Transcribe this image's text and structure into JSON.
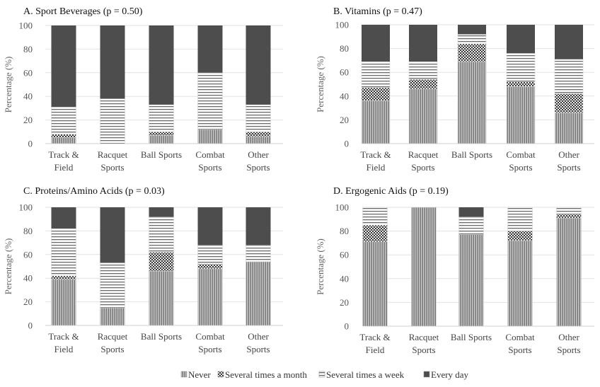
{
  "legend": {
    "items": [
      {
        "label": "Never",
        "key": "never"
      },
      {
        "label": "Several times a month",
        "key": "month"
      },
      {
        "label": "Several times a week",
        "key": "week"
      },
      {
        "label": "Every day",
        "key": "day"
      }
    ]
  },
  "chart_data": [
    {
      "type": "bar",
      "stacked": true,
      "title": "A. Sport Beverages (p = 0.50)",
      "xlabel": "",
      "ylabel": "Percentage (%)",
      "ylim": [
        0,
        100
      ],
      "yticks": [
        0,
        20,
        40,
        60,
        80,
        100
      ],
      "grid": true,
      "categories": [
        "Track & Field",
        "Racquet Sports",
        "Ball Sports",
        "Combat Sports",
        "Other Sports"
      ],
      "category_lines": [
        [
          "Track &",
          "Field"
        ],
        [
          "Racquet",
          "Sports"
        ],
        [
          "Ball Sports"
        ],
        [
          "Combat",
          "Sports"
        ],
        [
          "Other",
          "Sports"
        ]
      ],
      "series": [
        {
          "name": "Never",
          "values": [
            5,
            0,
            7,
            12,
            6
          ]
        },
        {
          "name": "Several times a month",
          "values": [
            3,
            0,
            3,
            0,
            4
          ]
        },
        {
          "name": "Several times a week",
          "values": [
            23,
            38,
            23,
            48,
            23
          ]
        },
        {
          "name": "Every day",
          "values": [
            69,
            62,
            67,
            40,
            67
          ]
        }
      ]
    },
    {
      "type": "bar",
      "stacked": true,
      "title": "B. Vitamins (p = 0.47)",
      "xlabel": "",
      "ylabel": "Percentage (%)",
      "ylim": [
        0,
        100
      ],
      "yticks": [
        0,
        20,
        40,
        60,
        80,
        100
      ],
      "grid": true,
      "categories": [
        "Track & Field",
        "Racquet Sports",
        "Ball Sports",
        "Combat Sports",
        "Other Sports"
      ],
      "category_lines": [
        [
          "Track &",
          "Field"
        ],
        [
          "Racquet",
          "Sports"
        ],
        [
          "Ball Sports"
        ],
        [
          "Combat",
          "Sports"
        ],
        [
          "Other",
          "Sports"
        ]
      ],
      "series": [
        {
          "name": "Never",
          "values": [
            36,
            46,
            69,
            48,
            26
          ]
        },
        {
          "name": "Several times a month",
          "values": [
            11,
            8,
            15,
            4,
            16
          ]
        },
        {
          "name": "Several times a week",
          "values": [
            22,
            15,
            8,
            24,
            29
          ]
        },
        {
          "name": "Every day",
          "values": [
            31,
            31,
            8,
            24,
            29
          ]
        }
      ]
    },
    {
      "type": "bar",
      "stacked": true,
      "title": "C. Proteins/Amino  Acids (p = 0.03)",
      "xlabel": "",
      "ylabel": "Percentage (%)",
      "ylim": [
        0,
        100
      ],
      "yticks": [
        0,
        20,
        40,
        60,
        80,
        100
      ],
      "grid": true,
      "categories": [
        "Track & Field",
        "Racquet Sports",
        "Ball Sports",
        "Combat Sports",
        "Other Sports"
      ],
      "category_lines": [
        [
          "Track &",
          "Field"
        ],
        [
          "Racquet",
          "Sports"
        ],
        [
          "Ball Sports"
        ],
        [
          "Combat",
          "Sports"
        ],
        [
          "Other",
          "Sports"
        ]
      ],
      "series": [
        {
          "name": "Never",
          "values": [
            39,
            15,
            46,
            48,
            54
          ]
        },
        {
          "name": "Several times a month",
          "values": [
            3,
            0,
            16,
            4,
            0
          ]
        },
        {
          "name": "Several times a week",
          "values": [
            40,
            38,
            30,
            16,
            14
          ]
        },
        {
          "name": "Every day",
          "values": [
            18,
            47,
            8,
            32,
            32
          ]
        }
      ]
    },
    {
      "type": "bar",
      "stacked": true,
      "title": "D. Ergogenic  Aids (p = 0.19)",
      "xlabel": "",
      "ylabel": "Percentage (%)",
      "ylim": [
        0,
        100
      ],
      "yticks": [
        0,
        20,
        40,
        60,
        80,
        100
      ],
      "grid": true,
      "categories": [
        "Track & Field",
        "Racquet Sports",
        "Ball Sports",
        "Combat Sports",
        "Other Sports"
      ],
      "category_lines": [
        [
          "Track &",
          "Field"
        ],
        [
          "Racquet",
          "Sports"
        ],
        [
          "Ball Sports"
        ],
        [
          "Combat",
          "Sports"
        ],
        [
          "Other",
          "Sports"
        ]
      ],
      "series": [
        {
          "name": "Never",
          "values": [
            71,
            100,
            77,
            72,
            91
          ]
        },
        {
          "name": "Several times a month",
          "values": [
            14,
            0,
            0,
            8,
            3
          ]
        },
        {
          "name": "Several times a week",
          "values": [
            15,
            0,
            15,
            20,
            6
          ]
        },
        {
          "name": "Every day",
          "values": [
            0,
            0,
            8,
            0,
            0
          ]
        }
      ]
    }
  ]
}
